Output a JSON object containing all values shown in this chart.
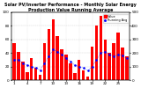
{
  "title": "Solar PV/Inverter Performance - Monthly Solar Energy Production Value Running Average",
  "bar_values": [
    55,
    42,
    28,
    12,
    32,
    18,
    8,
    55,
    75,
    90,
    65,
    45,
    38,
    25,
    10,
    30,
    15,
    5,
    50,
    80,
    95,
    60,
    40,
    55,
    70,
    48,
    35
  ],
  "avg_values": [
    30,
    30,
    25,
    22,
    20,
    18,
    15,
    25,
    35,
    45,
    42,
    38,
    32,
    28,
    22,
    20,
    18,
    14,
    20,
    30,
    40,
    42,
    38,
    35,
    38,
    36,
    32
  ],
  "bar_color": "#FF0000",
  "avg_color": "#0000FF",
  "background_color": "#FFFFFF",
  "grid_color": "#CCCCCC",
  "ylim": [
    0,
    100
  ],
  "ylabel_right": [
    "500",
    "400",
    "300",
    "200",
    "100",
    "0"
  ],
  "title_fontsize": 3.5,
  "axis_fontsize": 3
}
